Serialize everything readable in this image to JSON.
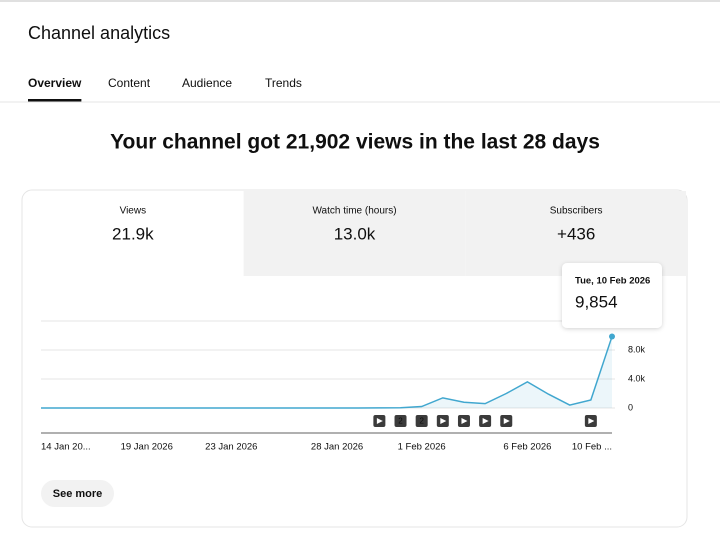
{
  "header": {
    "title": "Channel analytics"
  },
  "tabs": [
    "Overview",
    "Content",
    "Audience",
    "Trends"
  ],
  "headline": "Your channel got 21,902 views in the last 28 days",
  "metrics": [
    {
      "label": "Views",
      "value": "21.9k"
    },
    {
      "label": "Watch time (hours)",
      "value": "13.0k"
    },
    {
      "label": "Subscribers",
      "value": "+436"
    }
  ],
  "chart_data": {
    "type": "line",
    "categories": [
      "14 Jan 20...",
      null,
      null,
      null,
      null,
      "19 Jan 2026",
      null,
      null,
      null,
      "23 Jan 2026",
      null,
      null,
      null,
      null,
      "28 Jan 2026",
      null,
      null,
      null,
      "1 Feb 2026",
      null,
      null,
      null,
      null,
      "6 Feb 2026",
      null,
      null,
      null,
      "10 Feb ..."
    ],
    "series": [
      {
        "name": "Views",
        "color": "#41a7cf",
        "values": [
          0,
          0,
          0,
          0,
          0,
          0,
          0,
          0,
          0,
          0,
          0,
          0,
          0,
          0,
          0,
          0,
          20,
          30,
          200,
          1400,
          800,
          600,
          2000,
          3600,
          1900,
          400,
          1100,
          9854
        ],
        "value_labels": [
          null,
          null,
          null,
          null,
          null,
          null,
          null,
          null,
          null,
          null,
          null,
          null,
          null,
          null,
          null,
          null,
          null,
          null,
          null,
          null,
          null,
          null,
          null,
          null,
          null,
          null,
          null,
          "9,854"
        ]
      }
    ],
    "tooltip_date": "Tue, 10 Feb 2026",
    "uploads": [
      null,
      null,
      null,
      null,
      null,
      null,
      null,
      null,
      null,
      null,
      null,
      null,
      null,
      null,
      null,
      null,
      1,
      2,
      2,
      1,
      1,
      1,
      1,
      null,
      null,
      null,
      1,
      null
    ],
    "ylim": [
      0,
      12000
    ],
    "yticks": [
      0,
      {
        "value": 4000,
        "label": "4.0k"
      },
      {
        "value": 8000,
        "label": "8.0k"
      }
    ],
    "grid": true
  },
  "button": "See more"
}
